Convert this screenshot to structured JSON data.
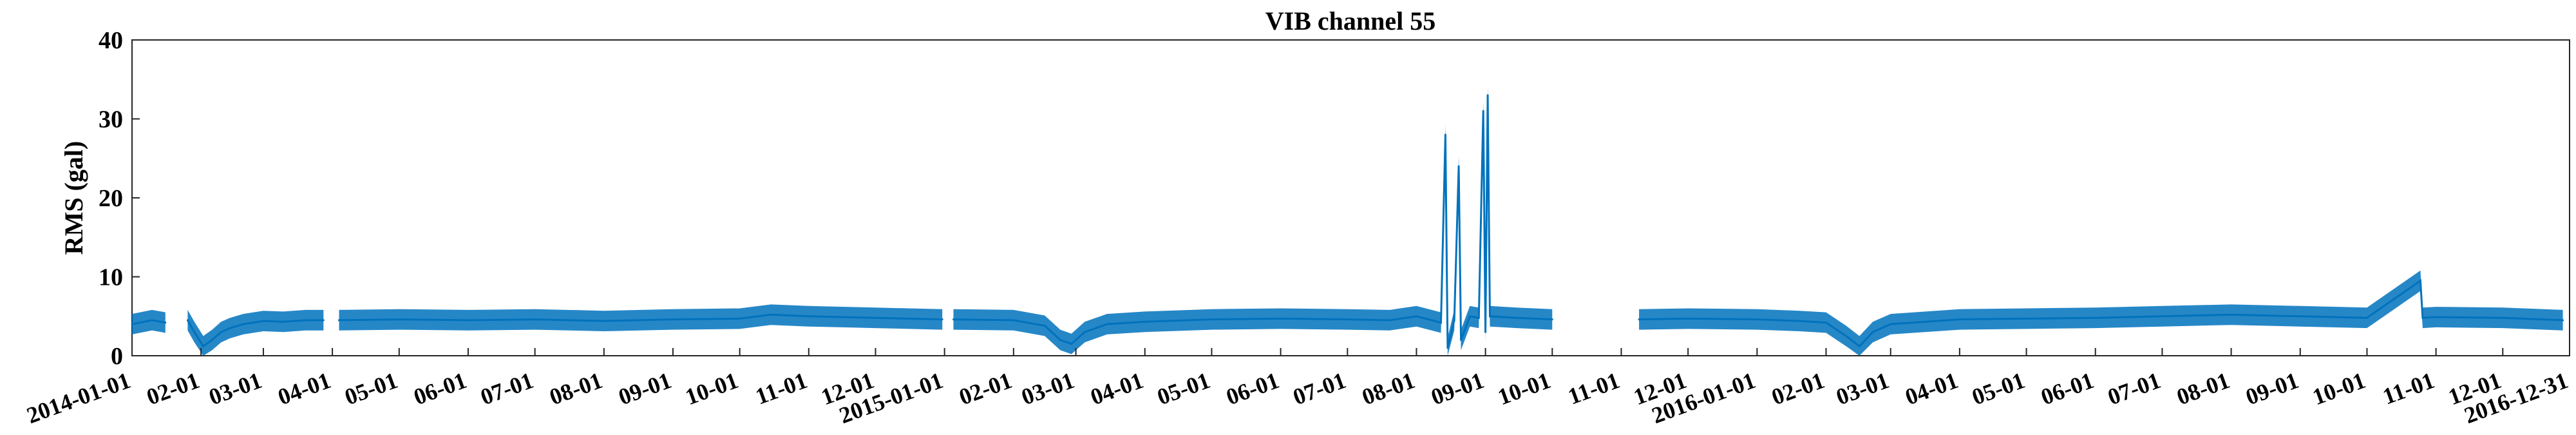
{
  "chart_data": {
    "type": "line",
    "title": "VIB channel 55",
    "xlabel": "",
    "ylabel": "RMS (gal)",
    "ylim": [
      0,
      40
    ],
    "yticks": [
      0,
      10,
      20,
      30,
      40
    ],
    "x_start": "2014-01-01",
    "x_end": "2016-12-31",
    "xtick_labels": [
      "2014-01-01",
      "02-01",
      "03-01",
      "04-01",
      "05-01",
      "06-01",
      "07-01",
      "08-01",
      "09-01",
      "10-01",
      "11-01",
      "12-01",
      "2015-01-01",
      "02-01",
      "03-01",
      "04-01",
      "05-01",
      "06-01",
      "07-01",
      "08-01",
      "09-01",
      "10-01",
      "11-01",
      "12-01",
      "2016-01-01",
      "02-01",
      "03-01",
      "04-01",
      "05-01",
      "06-01",
      "07-01",
      "08-01",
      "09-01",
      "10-01",
      "11-01",
      "12-01",
      "2016-12-31"
    ],
    "xtick_dates": [
      "2014-01-01",
      "2014-02-01",
      "2014-03-01",
      "2014-04-01",
      "2014-05-01",
      "2014-06-01",
      "2014-07-01",
      "2014-08-01",
      "2014-09-01",
      "2014-10-01",
      "2014-11-01",
      "2014-12-01",
      "2015-01-01",
      "2015-02-01",
      "2015-03-01",
      "2015-04-01",
      "2015-05-01",
      "2015-06-01",
      "2015-07-01",
      "2015-08-01",
      "2015-09-01",
      "2015-10-01",
      "2015-11-01",
      "2015-12-01",
      "2016-01-01",
      "2016-02-01",
      "2016-03-01",
      "2016-04-01",
      "2016-05-01",
      "2016-06-01",
      "2016-07-01",
      "2016-08-01",
      "2016-09-01",
      "2016-10-01",
      "2016-11-01",
      "2016-12-01",
      "2016-12-31"
    ],
    "grid": false,
    "series": [
      {
        "color": "#0072BD",
        "points": [
          [
            "2014-01-01",
            4.0
          ],
          [
            "2014-01-10",
            4.5
          ],
          [
            "2014-01-16",
            4.2
          ],
          [
            "2014-01-17",
            null
          ],
          [
            "2014-01-26",
            4.5
          ],
          [
            "2014-01-29",
            3.0
          ],
          [
            "2014-02-02",
            1.2
          ],
          [
            "2014-02-06",
            2.0
          ],
          [
            "2014-02-10",
            3.0
          ],
          [
            "2014-02-14",
            3.5
          ],
          [
            "2014-02-20",
            4.0
          ],
          [
            "2014-03-01",
            4.4
          ],
          [
            "2014-03-10",
            4.3
          ],
          [
            "2014-03-20",
            4.5
          ],
          [
            "2014-03-28",
            4.5
          ],
          [
            "2014-03-30",
            null
          ],
          [
            "2014-04-04",
            4.5
          ],
          [
            "2014-05-01",
            4.6
          ],
          [
            "2014-06-01",
            4.5
          ],
          [
            "2014-07-01",
            4.6
          ],
          [
            "2014-08-01",
            4.4
          ],
          [
            "2014-09-01",
            4.6
          ],
          [
            "2014-10-01",
            4.7
          ],
          [
            "2014-10-15",
            5.2
          ],
          [
            "2014-11-01",
            5.0
          ],
          [
            "2014-12-01",
            4.8
          ],
          [
            "2014-12-31",
            4.6
          ],
          [
            "2015-01-01",
            null
          ],
          [
            "2015-01-05",
            4.6
          ],
          [
            "2015-02-01",
            4.5
          ],
          [
            "2015-02-15",
            3.8
          ],
          [
            "2015-02-22",
            2.0
          ],
          [
            "2015-02-27",
            1.5
          ],
          [
            "2015-03-05",
            3.0
          ],
          [
            "2015-03-15",
            4.0
          ],
          [
            "2015-04-01",
            4.3
          ],
          [
            "2015-05-01",
            4.6
          ],
          [
            "2015-06-01",
            4.7
          ],
          [
            "2015-07-01",
            4.6
          ],
          [
            "2015-07-20",
            4.5
          ],
          [
            "2015-08-01",
            5.0
          ],
          [
            "2015-08-12",
            4.2
          ],
          [
            "2015-08-14",
            28.0
          ],
          [
            "2015-08-15",
            1.0
          ],
          [
            "2015-08-18",
            4.5
          ],
          [
            "2015-08-20",
            24.0
          ],
          [
            "2015-08-21",
            2.0
          ],
          [
            "2015-08-25",
            5.0
          ],
          [
            "2015-08-29",
            4.8
          ],
          [
            "2015-08-31",
            31.0
          ],
          [
            "2015-09-01",
            3.0
          ],
          [
            "2015-09-02",
            33.0
          ],
          [
            "2015-09-03",
            5.0
          ],
          [
            "2015-09-15",
            4.8
          ],
          [
            "2015-10-01",
            4.6
          ],
          [
            "2015-10-02",
            null
          ],
          [
            "2015-11-09",
            4.6
          ],
          [
            "2015-12-01",
            4.7
          ],
          [
            "2016-01-01",
            4.6
          ],
          [
            "2016-01-20",
            4.4
          ],
          [
            "2016-02-01",
            4.2
          ],
          [
            "2016-02-10",
            2.5
          ],
          [
            "2016-02-16",
            1.2
          ],
          [
            "2016-02-22",
            3.0
          ],
          [
            "2016-03-01",
            4.0
          ],
          [
            "2016-04-01",
            4.6
          ],
          [
            "2016-05-01",
            4.7
          ],
          [
            "2016-06-01",
            4.8
          ],
          [
            "2016-07-01",
            5.0
          ],
          [
            "2016-08-01",
            5.2
          ],
          [
            "2016-09-01",
            5.0
          ],
          [
            "2016-10-01",
            4.8
          ],
          [
            "2016-10-25",
            9.5
          ],
          [
            "2016-10-26",
            4.8
          ],
          [
            "2016-11-01",
            4.9
          ],
          [
            "2016-12-01",
            4.8
          ],
          [
            "2016-12-28",
            4.5
          ]
        ]
      }
    ]
  }
}
